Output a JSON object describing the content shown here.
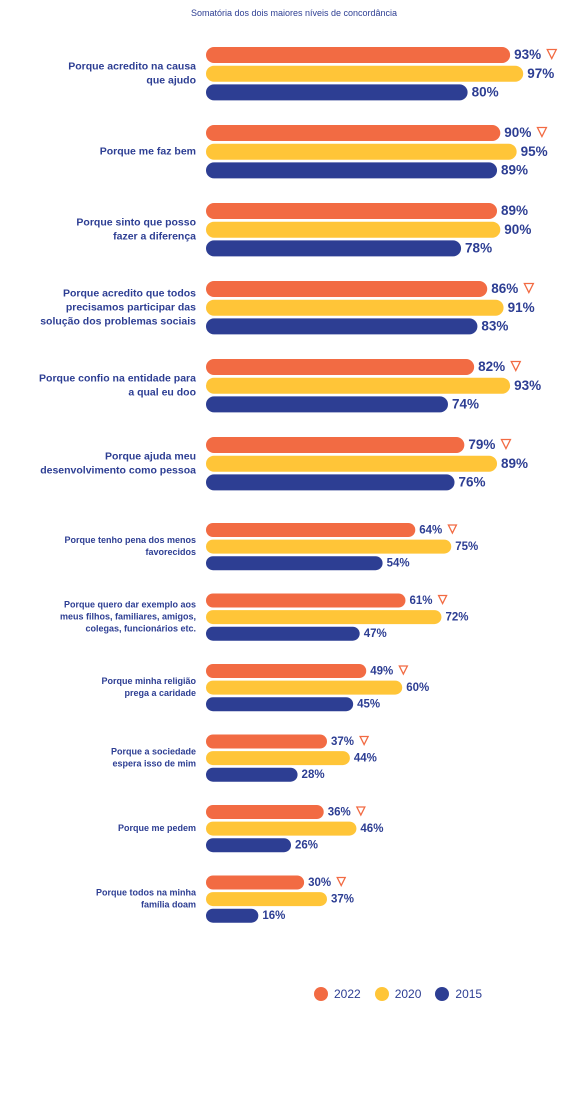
{
  "chart_data": {
    "type": "bar",
    "orientation": "horizontal",
    "subtitle": "Somatória dos dois maiores níveis de concordância",
    "categories": [
      [
        "Porque acredito na causa",
        "que ajudo"
      ],
      [
        "Porque me faz bem"
      ],
      [
        "Porque sinto que posso",
        "fazer a diferença"
      ],
      [
        "Porque acredito que todos",
        "precisamos participar das",
        "solução dos problemas sociais"
      ],
      [
        "Porque confio na entidade para",
        "a qual eu doo"
      ],
      [
        "Porque ajuda meu",
        "desenvolvimento como pessoa"
      ],
      [
        "Porque tenho pena dos menos",
        "favorecidos"
      ],
      [
        "Porque  quero dar exemplo aos",
        "meus filhos, familiares, amigos,",
        "colegas, funcionários etc."
      ],
      [
        "Porque minha religião",
        "prega a caridade"
      ],
      [
        "Porque a sociedade",
        "espera isso de mim"
      ],
      [
        "Porque me pedem"
      ],
      [
        "Porque todos na minha",
        "família doam"
      ]
    ],
    "series": [
      {
        "name": "2022",
        "color": "#f26b43",
        "values": [
          93,
          90,
          89,
          86,
          82,
          79,
          64,
          61,
          49,
          37,
          36,
          30
        ],
        "decrease_marker": [
          true,
          true,
          false,
          true,
          true,
          true,
          true,
          true,
          true,
          true,
          true,
          true
        ]
      },
      {
        "name": "2020",
        "color": "#ffc538",
        "values": [
          97,
          95,
          90,
          91,
          93,
          89,
          75,
          72,
          60,
          44,
          46,
          37
        ]
      },
      {
        "name": "2015",
        "color": "#2d3e93",
        "values": [
          80,
          89,
          78,
          83,
          74,
          76,
          54,
          47,
          45,
          28,
          26,
          16
        ]
      }
    ],
    "value_suffix": "%",
    "xlim": [
      0,
      100
    ],
    "legend": {
      "position": "bottom-right",
      "entries": [
        "2022",
        "2020",
        "2015"
      ]
    },
    "grid": false
  }
}
